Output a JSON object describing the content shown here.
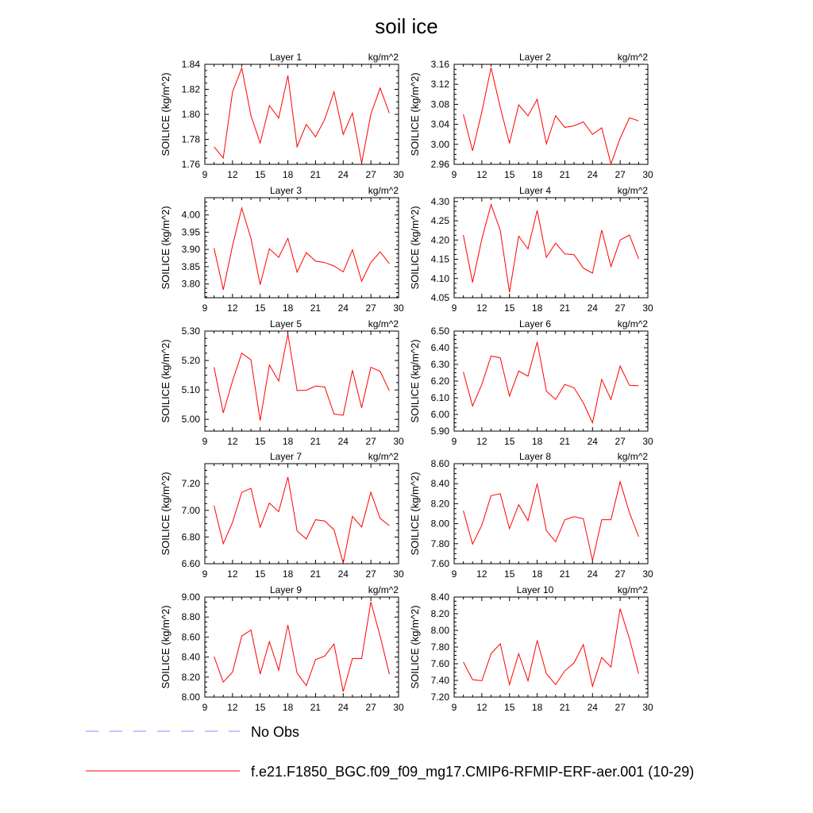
{
  "figure": {
    "title": "soil ice",
    "legend": [
      {
        "label": "No Obs",
        "color": "#8888ff",
        "dash": true
      },
      {
        "label": "f.e21.F1850_BGC.f09_f09_mg17.CMIP6-RFMIP-ERF-aer.001 (10-29)",
        "color": "#ff0000",
        "dash": false
      }
    ]
  },
  "chart_data": [
    {
      "type": "line",
      "title": "Layer 1",
      "unit_label": "kg/m^2",
      "ylabel": "SOILICE  (kg/m^2)",
      "xlim": [
        9,
        30
      ],
      "xticks": [
        9,
        12,
        15,
        18,
        21,
        24,
        27,
        30
      ],
      "ylim": [
        1.76,
        1.84
      ],
      "yticks": [
        "1.76",
        "1.78",
        "1.80",
        "1.82",
        "1.84"
      ],
      "x": [
        10,
        11,
        12,
        13,
        14,
        15,
        16,
        17,
        18,
        19,
        20,
        21,
        22,
        23,
        24,
        25,
        26,
        27,
        28,
        29
      ],
      "series": [
        {
          "color": "#ff0000",
          "values": [
            1.774,
            1.765,
            1.818,
            1.837,
            1.799,
            1.777,
            1.807,
            1.797,
            1.831,
            1.774,
            1.792,
            1.782,
            1.796,
            1.818,
            1.784,
            1.801,
            1.761,
            1.8,
            1.821,
            1.801
          ]
        }
      ]
    },
    {
      "type": "line",
      "title": "Layer 2",
      "unit_label": "kg/m^2",
      "ylabel": "SOILICE  (kg/m^2)",
      "xlim": [
        9,
        30
      ],
      "xticks": [
        9,
        12,
        15,
        18,
        21,
        24,
        27,
        30
      ],
      "ylim": [
        2.96,
        3.16
      ],
      "yticks": [
        "2.96",
        "3.00",
        "3.04",
        "3.08",
        "3.12",
        "3.16"
      ],
      "x": [
        10,
        11,
        12,
        13,
        14,
        15,
        16,
        17,
        18,
        19,
        20,
        21,
        22,
        23,
        24,
        25,
        26,
        27,
        28,
        29
      ],
      "series": [
        {
          "color": "#ff0000",
          "values": [
            3.06,
            2.987,
            3.065,
            3.153,
            3.074,
            3.002,
            3.079,
            3.057,
            3.09,
            3.001,
            3.057,
            3.034,
            3.037,
            3.045,
            3.02,
            3.033,
            2.961,
            3.012,
            3.053,
            3.047
          ]
        }
      ]
    },
    {
      "type": "line",
      "title": "Layer 3",
      "unit_label": "kg/m^2",
      "ylabel": "SOILICE  (kg/m^2)",
      "xlim": [
        9,
        30
      ],
      "xticks": [
        9,
        12,
        15,
        18,
        21,
        24,
        27,
        30
      ],
      "ylim": [
        3.76,
        4.05
      ],
      "yticks": [
        "3.80",
        "3.85",
        "3.90",
        "3.95",
        "4.00"
      ],
      "x": [
        10,
        11,
        12,
        13,
        14,
        15,
        16,
        17,
        18,
        19,
        20,
        21,
        22,
        23,
        24,
        25,
        26,
        27,
        28,
        29
      ],
      "series": [
        {
          "color": "#ff0000",
          "values": [
            3.904,
            3.783,
            3.911,
            4.02,
            3.932,
            3.798,
            3.902,
            3.877,
            3.932,
            3.834,
            3.891,
            3.866,
            3.862,
            3.852,
            3.835,
            3.899,
            3.808,
            3.862,
            3.893,
            3.859
          ]
        }
      ]
    },
    {
      "type": "line",
      "title": "Layer 4",
      "unit_label": "kg/m^2",
      "ylabel": "SOILICE  (kg/m^2)",
      "xlim": [
        9,
        30
      ],
      "xticks": [
        9,
        12,
        15,
        18,
        21,
        24,
        27,
        30
      ],
      "ylim": [
        4.05,
        4.31
      ],
      "yticks": [
        "4.05",
        "4.10",
        "4.15",
        "4.20",
        "4.25",
        "4.30"
      ],
      "x": [
        10,
        11,
        12,
        13,
        14,
        15,
        16,
        17,
        18,
        19,
        20,
        21,
        22,
        23,
        24,
        25,
        26,
        27,
        28,
        29
      ],
      "series": [
        {
          "color": "#ff0000",
          "values": [
            4.213,
            4.09,
            4.203,
            4.292,
            4.225,
            4.064,
            4.21,
            4.177,
            4.277,
            4.155,
            4.192,
            4.164,
            4.162,
            4.127,
            4.114,
            4.226,
            4.131,
            4.2,
            4.213,
            4.151
          ]
        }
      ]
    },
    {
      "type": "line",
      "title": "Layer 5",
      "unit_label": "kg/m^2",
      "ylabel": "SOILICE  (kg/m^2)",
      "xlim": [
        9,
        30
      ],
      "xticks": [
        9,
        12,
        15,
        18,
        21,
        24,
        27,
        30
      ],
      "ylim": [
        4.96,
        5.3
      ],
      "yticks": [
        "5.00",
        "5.10",
        "5.20",
        "5.30"
      ],
      "x": [
        10,
        11,
        12,
        13,
        14,
        15,
        16,
        17,
        18,
        19,
        20,
        21,
        22,
        23,
        24,
        25,
        26,
        27,
        28,
        29
      ],
      "series": [
        {
          "color": "#ff0000",
          "values": [
            5.177,
            5.022,
            5.131,
            5.225,
            5.202,
            4.996,
            5.185,
            5.13,
            5.29,
            5.098,
            5.099,
            5.113,
            5.11,
            5.018,
            5.014,
            5.167,
            5.039,
            5.177,
            5.163,
            5.097
          ]
        }
      ]
    },
    {
      "type": "line",
      "title": "Layer 6",
      "unit_label": "kg/m^2",
      "ylabel": "SOILICE  (kg/m^2)",
      "xlim": [
        9,
        30
      ],
      "xticks": [
        9,
        12,
        15,
        18,
        21,
        24,
        27,
        30
      ],
      "ylim": [
        5.9,
        6.5
      ],
      "yticks": [
        "5.90",
        "6.00",
        "6.10",
        "6.20",
        "6.30",
        "6.40",
        "6.50"
      ],
      "x": [
        10,
        11,
        12,
        13,
        14,
        15,
        16,
        17,
        18,
        19,
        20,
        21,
        22,
        23,
        24,
        25,
        26,
        27,
        28,
        29
      ],
      "series": [
        {
          "color": "#ff0000",
          "values": [
            6.255,
            6.05,
            6.18,
            6.35,
            6.34,
            6.11,
            6.26,
            6.23,
            6.435,
            6.14,
            6.09,
            6.18,
            6.16,
            6.07,
            5.95,
            6.21,
            6.09,
            6.29,
            6.175,
            6.172
          ]
        }
      ]
    },
    {
      "type": "line",
      "title": "Layer 7",
      "unit_label": "kg/m^2",
      "ylabel": "SOILICE  (kg/m^2)",
      "xlim": [
        9,
        30
      ],
      "xticks": [
        9,
        12,
        15,
        18,
        21,
        24,
        27,
        30
      ],
      "ylim": [
        6.6,
        7.35
      ],
      "yticks": [
        "6.60",
        "6.80",
        "7.00",
        "7.20"
      ],
      "x": [
        10,
        11,
        12,
        13,
        14,
        15,
        16,
        17,
        18,
        19,
        20,
        21,
        22,
        23,
        24,
        25,
        26,
        27,
        28,
        29
      ],
      "series": [
        {
          "color": "#ff0000",
          "values": [
            7.035,
            6.75,
            6.91,
            7.135,
            7.165,
            6.873,
            7.055,
            6.99,
            7.25,
            6.846,
            6.785,
            6.93,
            6.92,
            6.855,
            6.605,
            6.955,
            6.875,
            7.135,
            6.94,
            6.885
          ]
        }
      ]
    },
    {
      "type": "line",
      "title": "Layer 8",
      "unit_label": "kg/m^2",
      "ylabel": "SOILICE  (kg/m^2)",
      "xlim": [
        9,
        30
      ],
      "xticks": [
        9,
        12,
        15,
        18,
        21,
        24,
        27,
        30
      ],
      "ylim": [
        7.6,
        8.6
      ],
      "yticks": [
        "7.60",
        "7.80",
        "8.00",
        "8.20",
        "8.40",
        "8.60"
      ],
      "x": [
        10,
        11,
        12,
        13,
        14,
        15,
        16,
        17,
        18,
        19,
        20,
        21,
        22,
        23,
        24,
        25,
        26,
        27,
        28,
        29
      ],
      "series": [
        {
          "color": "#ff0000",
          "values": [
            8.13,
            7.795,
            7.985,
            8.28,
            8.3,
            7.95,
            8.19,
            8.03,
            8.4,
            7.93,
            7.82,
            8.04,
            8.07,
            8.05,
            7.63,
            8.04,
            8.04,
            8.42,
            8.11,
            7.87
          ]
        }
      ]
    },
    {
      "type": "line",
      "title": "Layer 9",
      "unit_label": "kg/m^2",
      "ylabel": "SOILICE  (kg/m^2)",
      "xlim": [
        9,
        30
      ],
      "xticks": [
        9,
        12,
        15,
        18,
        21,
        24,
        27,
        30
      ],
      "ylim": [
        8.0,
        9.0
      ],
      "yticks": [
        "8.00",
        "8.20",
        "8.40",
        "8.60",
        "8.80",
        "9.00"
      ],
      "x": [
        10,
        11,
        12,
        13,
        14,
        15,
        16,
        17,
        18,
        19,
        20,
        21,
        22,
        23,
        24,
        25,
        26,
        27,
        28,
        29
      ],
      "series": [
        {
          "color": "#ff0000",
          "values": [
            8.405,
            8.15,
            8.25,
            8.61,
            8.67,
            8.23,
            8.555,
            8.27,
            8.72,
            8.24,
            8.115,
            8.375,
            8.41,
            8.53,
            8.055,
            8.385,
            8.385,
            8.95,
            8.61,
            8.23
          ]
        }
      ]
    },
    {
      "type": "line",
      "title": "Layer 10",
      "unit_label": "kg/m^2",
      "ylabel": "SOILICE  (kg/m^2)",
      "xlim": [
        9,
        30
      ],
      "xticks": [
        9,
        12,
        15,
        18,
        21,
        24,
        27,
        30
      ],
      "ylim": [
        7.2,
        8.4
      ],
      "yticks": [
        "7.20",
        "7.40",
        "7.60",
        "7.80",
        "8.00",
        "8.20",
        "8.40"
      ],
      "x": [
        10,
        11,
        12,
        13,
        14,
        15,
        16,
        17,
        18,
        19,
        20,
        21,
        22,
        23,
        24,
        25,
        26,
        27,
        28,
        29
      ],
      "series": [
        {
          "color": "#ff0000",
          "values": [
            7.62,
            7.41,
            7.395,
            7.72,
            7.84,
            7.35,
            7.72,
            7.395,
            7.88,
            7.48,
            7.35,
            7.515,
            7.61,
            7.83,
            7.33,
            7.675,
            7.56,
            8.26,
            7.9,
            7.48
          ]
        }
      ]
    }
  ]
}
